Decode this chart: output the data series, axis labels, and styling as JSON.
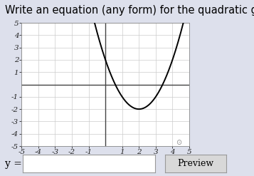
{
  "title": "Write an equation (any form) for the quadratic graphed below",
  "title_fontsize": 10.5,
  "bg_color": "#dde0ec",
  "plot_bg_color": "#ffffff",
  "xlim": [
    -5,
    5
  ],
  "ylim": [
    -5,
    5
  ],
  "xticks": [
    -5,
    -4,
    -3,
    -2,
    -1,
    1,
    2,
    3,
    4,
    5
  ],
  "yticks": [
    -5,
    -4,
    -3,
    -2,
    -1,
    1,
    2,
    3,
    4,
    5
  ],
  "vertex_x": 2,
  "vertex_y": -2,
  "curve_color": "#000000",
  "curve_lw": 1.4,
  "x_range_left": -0.72,
  "x_range_right": 4.72,
  "ylabel_text": "y =",
  "preview_text": "Preview",
  "tick_fontsize": 7.5,
  "axis_line_color": "#444444",
  "grid_color": "#cccccc"
}
